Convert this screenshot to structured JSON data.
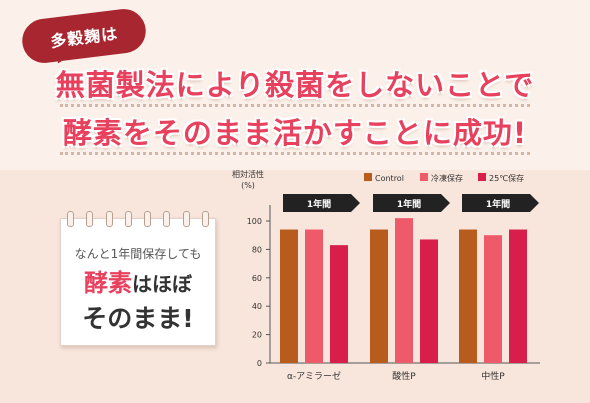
{
  "tag_text": "多穀麹は",
  "headline": {
    "line1": "無菌製法により殺菌をしないことで",
    "line2": "酵素をそのまま活かすことに成功!"
  },
  "note": {
    "line1": "なんと1年間保存しても",
    "emph": "酵素",
    "rest2": "はほぼ",
    "line3": "そのまま!"
  },
  "colors": {
    "control": "#b85c1e",
    "frozen": "#ef5a6a",
    "room": "#d81e4b",
    "accent": "#e8415e"
  },
  "chart_data": {
    "type": "bar",
    "ylabel_line1": "相対活性",
    "ylabel_line2": "(%)",
    "ylim": [
      0,
      100
    ],
    "yticks": [
      0,
      20,
      40,
      60,
      80,
      100
    ],
    "categories": [
      "α-アミラーゼ",
      "酸性P",
      "中性P"
    ],
    "period_label": "1年間",
    "series": [
      {
        "name": "Control",
        "color": "#b85c1e",
        "values": [
          94,
          94,
          94
        ]
      },
      {
        "name": "冷凍保存",
        "color": "#ef5a6a",
        "values": [
          94,
          102,
          90
        ]
      },
      {
        "name": "25℃保存",
        "color": "#d81e4b",
        "values": [
          83,
          87,
          94
        ]
      }
    ],
    "grid": false,
    "legend_position": "top"
  }
}
